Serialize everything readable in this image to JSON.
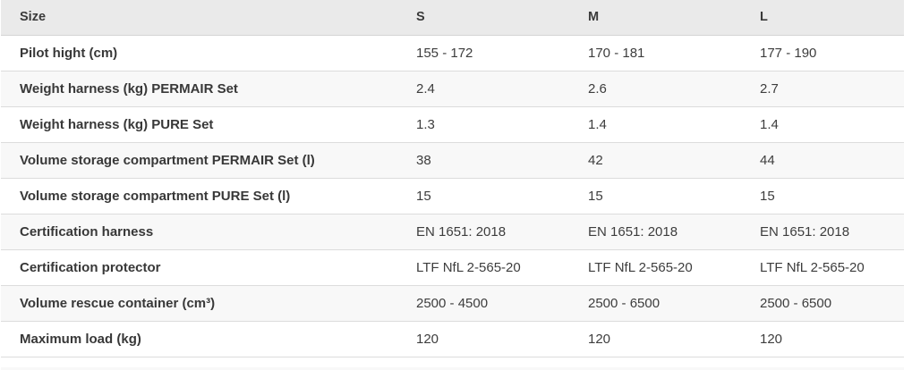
{
  "table": {
    "header": {
      "size_label": "Size",
      "columns": [
        "S",
        "M",
        "L"
      ]
    },
    "rows": [
      {
        "label": "Pilot hight (cm)",
        "values": [
          "155 - 172",
          "170 - 181",
          "177 - 190"
        ]
      },
      {
        "label": "Weight harness (kg) PERMAIR Set",
        "values": [
          "2.4",
          "2.6",
          "2.7"
        ]
      },
      {
        "label": "Weight harness (kg) PURE Set",
        "values": [
          "1.3",
          "1.4",
          "1.4"
        ]
      },
      {
        "label": "Volume storage compartment PERMAIR Set (l)",
        "values": [
          "38",
          "42",
          "44"
        ]
      },
      {
        "label": "Volume storage compartment PURE Set (l)",
        "values": [
          "15",
          "15",
          "15"
        ]
      },
      {
        "label": "Certification harness",
        "values": [
          "EN 1651: 2018",
          "EN 1651: 2018",
          "EN 1651: 2018"
        ]
      },
      {
        "label": "Certification protector",
        "values": [
          "LTF NfL 2-565-20",
          "LTF NfL 2-565-20",
          "LTF NfL 2-565-20"
        ]
      },
      {
        "label": "Volume rescue container (cm³)",
        "values": [
          "2500 - 4500",
          "2500 - 6500",
          "2500 - 6500"
        ]
      },
      {
        "label": "Maximum load (kg)",
        "values": [
          "120",
          "120",
          "120"
        ]
      }
    ],
    "colors": {
      "header_bg": "#eaeaea",
      "striped_row_bg": "#f8f8f8",
      "row_bg": "#ffffff",
      "border": "#dcdcdc",
      "text": "#3d3d3d"
    }
  }
}
